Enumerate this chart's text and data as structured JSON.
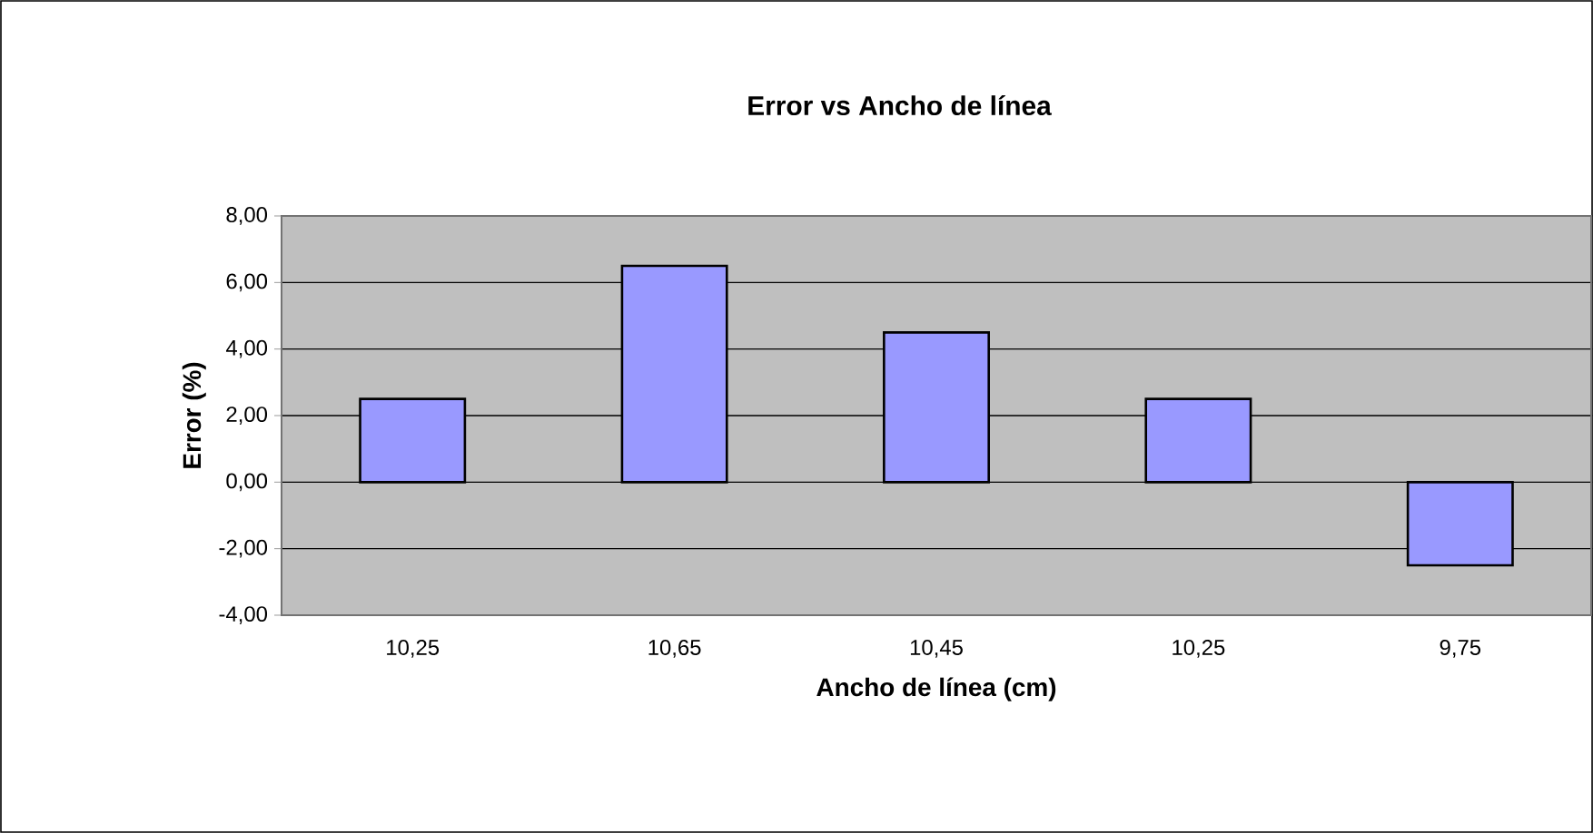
{
  "chart_data": {
    "type": "bar",
    "title": "Error vs Ancho de línea",
    "xlabel": "Ancho de línea (cm)",
    "ylabel": "Error (%)",
    "categories": [
      "10,25",
      "10,65",
      "10,45",
      "10,25",
      "9,75"
    ],
    "values": [
      2.5,
      6.5,
      4.5,
      2.5,
      -2.5
    ],
    "color": "#9999ff",
    "ylim": [
      -4,
      8
    ],
    "yticks": [
      {
        "value": -4,
        "label": "-4,00"
      },
      {
        "value": -2,
        "label": "-2,00"
      },
      {
        "value": 0,
        "label": "0,00"
      },
      {
        "value": 2,
        "label": "2,00"
      },
      {
        "value": 4,
        "label": "4,00"
      },
      {
        "value": 6,
        "label": "6,00"
      },
      {
        "value": 8,
        "label": "8,00"
      }
    ],
    "grid": "y"
  }
}
